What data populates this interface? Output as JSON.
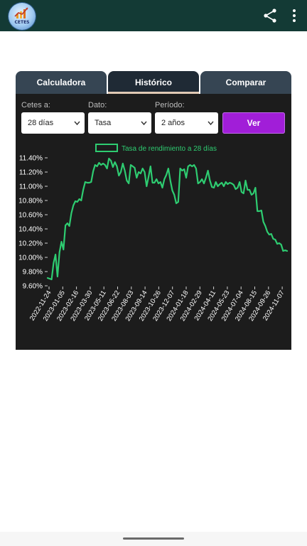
{
  "app": {
    "logo_text": "CETES"
  },
  "tabs": [
    {
      "label": "Calculadora",
      "active": false
    },
    {
      "label": "Histórico",
      "active": true
    },
    {
      "label": "Comparar",
      "active": false
    }
  ],
  "controls": {
    "cetes": {
      "label": "Cetes a:",
      "value": "28 días"
    },
    "dato": {
      "label": "Dato:",
      "value": "Tasa"
    },
    "periodo": {
      "label": "Período:",
      "value": "2 años"
    },
    "ver_label": "Ver"
  },
  "colors": {
    "accent": "#a11ed8",
    "line": "#2ecc71",
    "appbar": "#133a35"
  },
  "chart_data": {
    "type": "line",
    "legend": "Tasa de rendimiento a 28 días",
    "legend_position": "top-center",
    "ylim": [
      9.6,
      11.4
    ],
    "y_ticks": [
      "11.40%",
      "11.20%",
      "11.00%",
      "10.80%",
      "10.60%",
      "10.40%",
      "10.20%",
      "10.00%",
      "9.80%",
      "9.60%"
    ],
    "x_ticks": [
      "2022-11-24",
      "2023-01-05",
      "2023-02-16",
      "2023-03-30",
      "2023-05-11",
      "2023-06-22",
      "2023-08-03",
      "2023-09-14",
      "2023-10-26",
      "2023-12-07",
      "2024-01-18",
      "2024-02-29",
      "2024-04-11",
      "2024-05-23",
      "2024-07-04",
      "2024-08-15",
      "2024-09-26",
      "2024-11-07"
    ],
    "series": [
      {
        "name": "Tasa de rendimiento a 28 días",
        "values": [
          9.71,
          9.7,
          9.69,
          9.92,
          10.04,
          9.73,
          10.07,
          10.22,
          10.11,
          10.45,
          10.48,
          10.44,
          10.62,
          10.73,
          10.79,
          10.78,
          10.82,
          10.8,
          10.95,
          11.06,
          11.05,
          11.05,
          11.06,
          11.21,
          11.3,
          11.28,
          11.33,
          11.3,
          11.32,
          11.3,
          11.25,
          11.39,
          11.36,
          11.27,
          11.34,
          11.28,
          11.15,
          11.2,
          11.32,
          11.22,
          11.08,
          11.04,
          11.3,
          11.28,
          11.26,
          11.12,
          11.2,
          11.18,
          11.25,
          11.2,
          11.0,
          11.13,
          11.28,
          11.05,
          11.05,
          11.1,
          11.04,
          11.06,
          10.98,
          11.1,
          11.16,
          11.25,
          11.08,
          10.94,
          10.88,
          10.76,
          10.78,
          11.25,
          11.22,
          11.24,
          11.12,
          11.28,
          11.3,
          11.28,
          11.3,
          11.25,
          11.04,
          11.06,
          11.1,
          11.04,
          11.12,
          11.22,
          11.08,
          10.99,
          10.98,
          11.06,
          11.0,
          11.03,
          11.05,
          11.0,
          11.06,
          11.03,
          11.05,
          11.04,
          11.02,
          10.96,
          10.98,
          11.06,
          10.92,
          10.9,
          11.08,
          10.95,
          10.95,
          10.88,
          10.9,
          10.98,
          10.65,
          10.65,
          10.66,
          10.5,
          10.44,
          10.36,
          10.32,
          10.33,
          10.26,
          10.25,
          10.19,
          10.2,
          10.18,
          10.09,
          10.1,
          10.09
        ]
      }
    ]
  }
}
